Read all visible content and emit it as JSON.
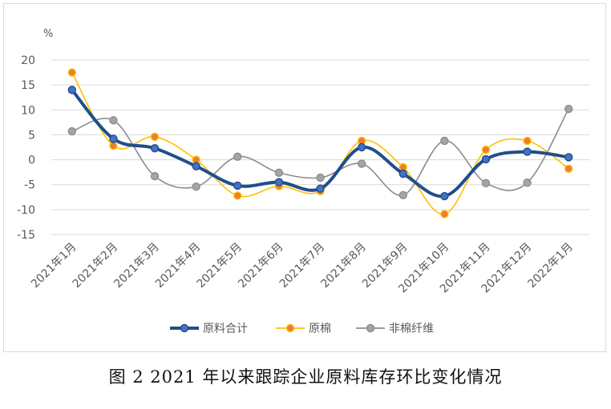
{
  "chart_data": {
    "type": "line",
    "unit_label": "%",
    "categories": [
      "2021年1月",
      "2021年2月",
      "2021年3月",
      "2021年4月",
      "2021年5月",
      "2021年6月",
      "2021年7月",
      "2021年8月",
      "2021年9月",
      "2021年10月",
      "2021年11月",
      "2021年12月",
      "2022年1月"
    ],
    "ylim": [
      -15,
      20
    ],
    "yticks": [
      20,
      15,
      10,
      5,
      0,
      -5,
      -10,
      -15
    ],
    "grid": true,
    "legend_position": "bottom",
    "series": [
      {
        "name": "原料合计",
        "color": "#1f4e8c",
        "marker": "#4472c4",
        "values": [
          14.0,
          4.2,
          2.3,
          -1.3,
          -5.2,
          -4.5,
          -5.8,
          2.5,
          -2.8,
          -7.3,
          0.1,
          1.6,
          0.5
        ]
      },
      {
        "name": "原棉",
        "color": "#ffc000",
        "marker": "#ed7d31",
        "values": [
          17.5,
          2.8,
          4.6,
          0.0,
          -7.2,
          -5.3,
          -6.3,
          3.8,
          -1.5,
          -10.9,
          2.0,
          3.8,
          -1.8
        ]
      },
      {
        "name": "非棉纤维",
        "color": "#8c8c8c",
        "marker": "#a5a5a5",
        "values": [
          5.7,
          7.9,
          -3.3,
          -5.4,
          0.6,
          -2.6,
          -3.6,
          -0.8,
          -7.1,
          3.8,
          -4.7,
          -4.6,
          10.2
        ]
      }
    ]
  },
  "caption": "图 2   2021 年以来跟踪企业原料库存环比变化情况"
}
